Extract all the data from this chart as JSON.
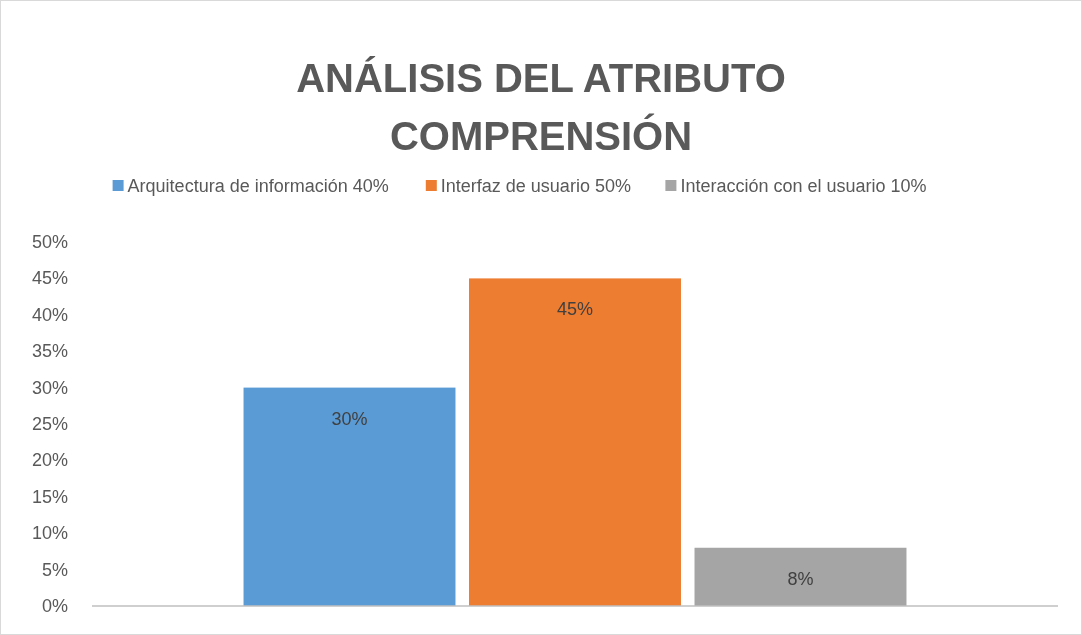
{
  "chart_data": {
    "type": "bar",
    "title": "ANÁLISIS DEL ATRIBUTO COMPRENSIÓN",
    "categories": [
      null
    ],
    "series": [
      {
        "name": "Arquitectura de información 40%",
        "color": "#5b9bd5",
        "values": [
          30
        ],
        "value_labels": [
          "30%"
        ]
      },
      {
        "name": "Interfaz de usuario 50%",
        "color": "#ed7d31",
        "values": [
          45
        ],
        "value_labels": [
          "45%"
        ]
      },
      {
        "name": "Interacción con el usuario 10%",
        "color": "#a5a5a5",
        "values": [
          8
        ],
        "value_labels": [
          "8%"
        ]
      }
    ],
    "ylim": [
      0,
      50
    ],
    "yticks": [
      {
        "value": 0,
        "label": "0%"
      },
      {
        "value": 5,
        "label": "5%"
      },
      {
        "value": 10,
        "label": "10%"
      },
      {
        "value": 15,
        "label": "15%"
      },
      {
        "value": 20,
        "label": "20%"
      },
      {
        "value": 25,
        "label": "25%"
      },
      {
        "value": 30,
        "label": "30%"
      },
      {
        "value": 35,
        "label": "35%"
      },
      {
        "value": 40,
        "label": "40%"
      },
      {
        "value": 45,
        "label": "45%"
      },
      {
        "value": 50,
        "label": "50%"
      }
    ],
    "legend": "top",
    "grid": false
  }
}
